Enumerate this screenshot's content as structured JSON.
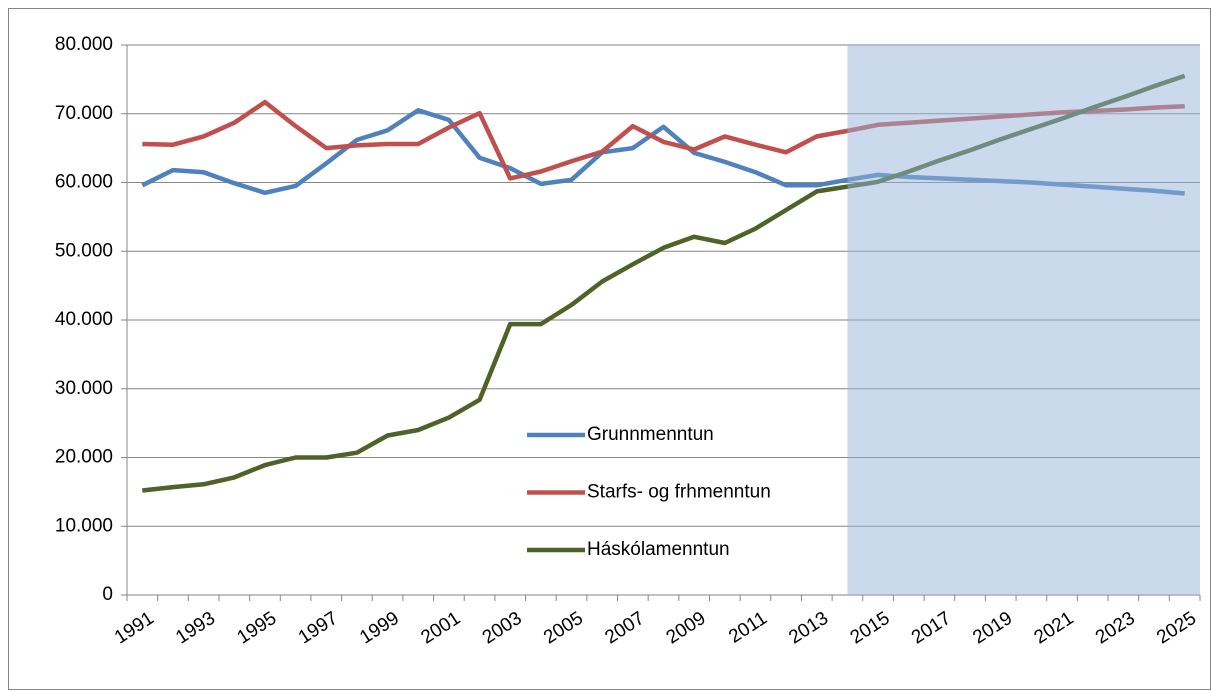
{
  "chart_data": {
    "type": "line",
    "categories": [
      "1991",
      null,
      "1993",
      null,
      "1995",
      null,
      "1997",
      null,
      "1999",
      null,
      "2001",
      null,
      "2003",
      null,
      "2005",
      null,
      "2007",
      null,
      "2009",
      null,
      "2011",
      null,
      "2013",
      null,
      "2015",
      null,
      "2017",
      null,
      "2019",
      null,
      "2021",
      null,
      "2023",
      null,
      "2025"
    ],
    "series": [
      {
        "name": "Grunnmenntun",
        "color": "#4f81bd",
        "values": [
          59600,
          61800,
          61500,
          59900,
          58500,
          59500,
          62800,
          66200,
          67600,
          70500,
          69100,
          63600,
          62100,
          59800,
          60400,
          64400,
          65000,
          68100,
          64300,
          63000,
          61500,
          59600,
          59600,
          60400,
          61100,
          60800,
          60600,
          60400,
          60200,
          60000,
          59700,
          59400,
          59100,
          58800,
          58400
        ]
      },
      {
        "name": "Starfs- og frhmenntun",
        "color": "#c0504d",
        "values": [
          65600,
          65500,
          66700,
          68700,
          71700,
          68200,
          65000,
          65400,
          65600,
          65600,
          68000,
          70100,
          60600,
          61600,
          63100,
          64500,
          68200,
          65900,
          64800,
          66700,
          65500,
          64400,
          66700,
          67500,
          68400,
          68700,
          69000,
          69300,
          69600,
          69900,
          70200,
          70400,
          70600,
          70900,
          71100
        ]
      },
      {
        "name": "Háskólamenntun",
        "color": "#4f6228",
        "values": [
          15200,
          15700,
          16100,
          17100,
          18900,
          20000,
          20000,
          20700,
          23200,
          24000,
          25800,
          28400,
          39400,
          39400,
          42200,
          45600,
          48100,
          50500,
          52100,
          51200,
          53300,
          56000,
          58700,
          59400,
          60100,
          61600,
          63200,
          64700,
          66300,
          67800,
          69300,
          70900,
          72400,
          74000,
          75500
        ]
      }
    ],
    "ylim": [
      0,
      80000
    ],
    "yticks": [
      0,
      {
        "value": 10000,
        "label": "10.000"
      },
      {
        "value": 20000,
        "label": "20.000"
      },
      {
        "value": 30000,
        "label": "30.000"
      },
      {
        "value": 40000,
        "label": "40.000"
      },
      {
        "value": 50000,
        "label": "50.000"
      },
      {
        "value": 60000,
        "label": "60.000"
      },
      {
        "value": 70000,
        "label": "70.000"
      },
      {
        "value": 80000,
        "label": "80.000"
      }
    ],
    "grid": true,
    "legend": "center",
    "shaded_region": {
      "from": 2014,
      "to": 2025,
      "color": "#95b3d7"
    }
  }
}
